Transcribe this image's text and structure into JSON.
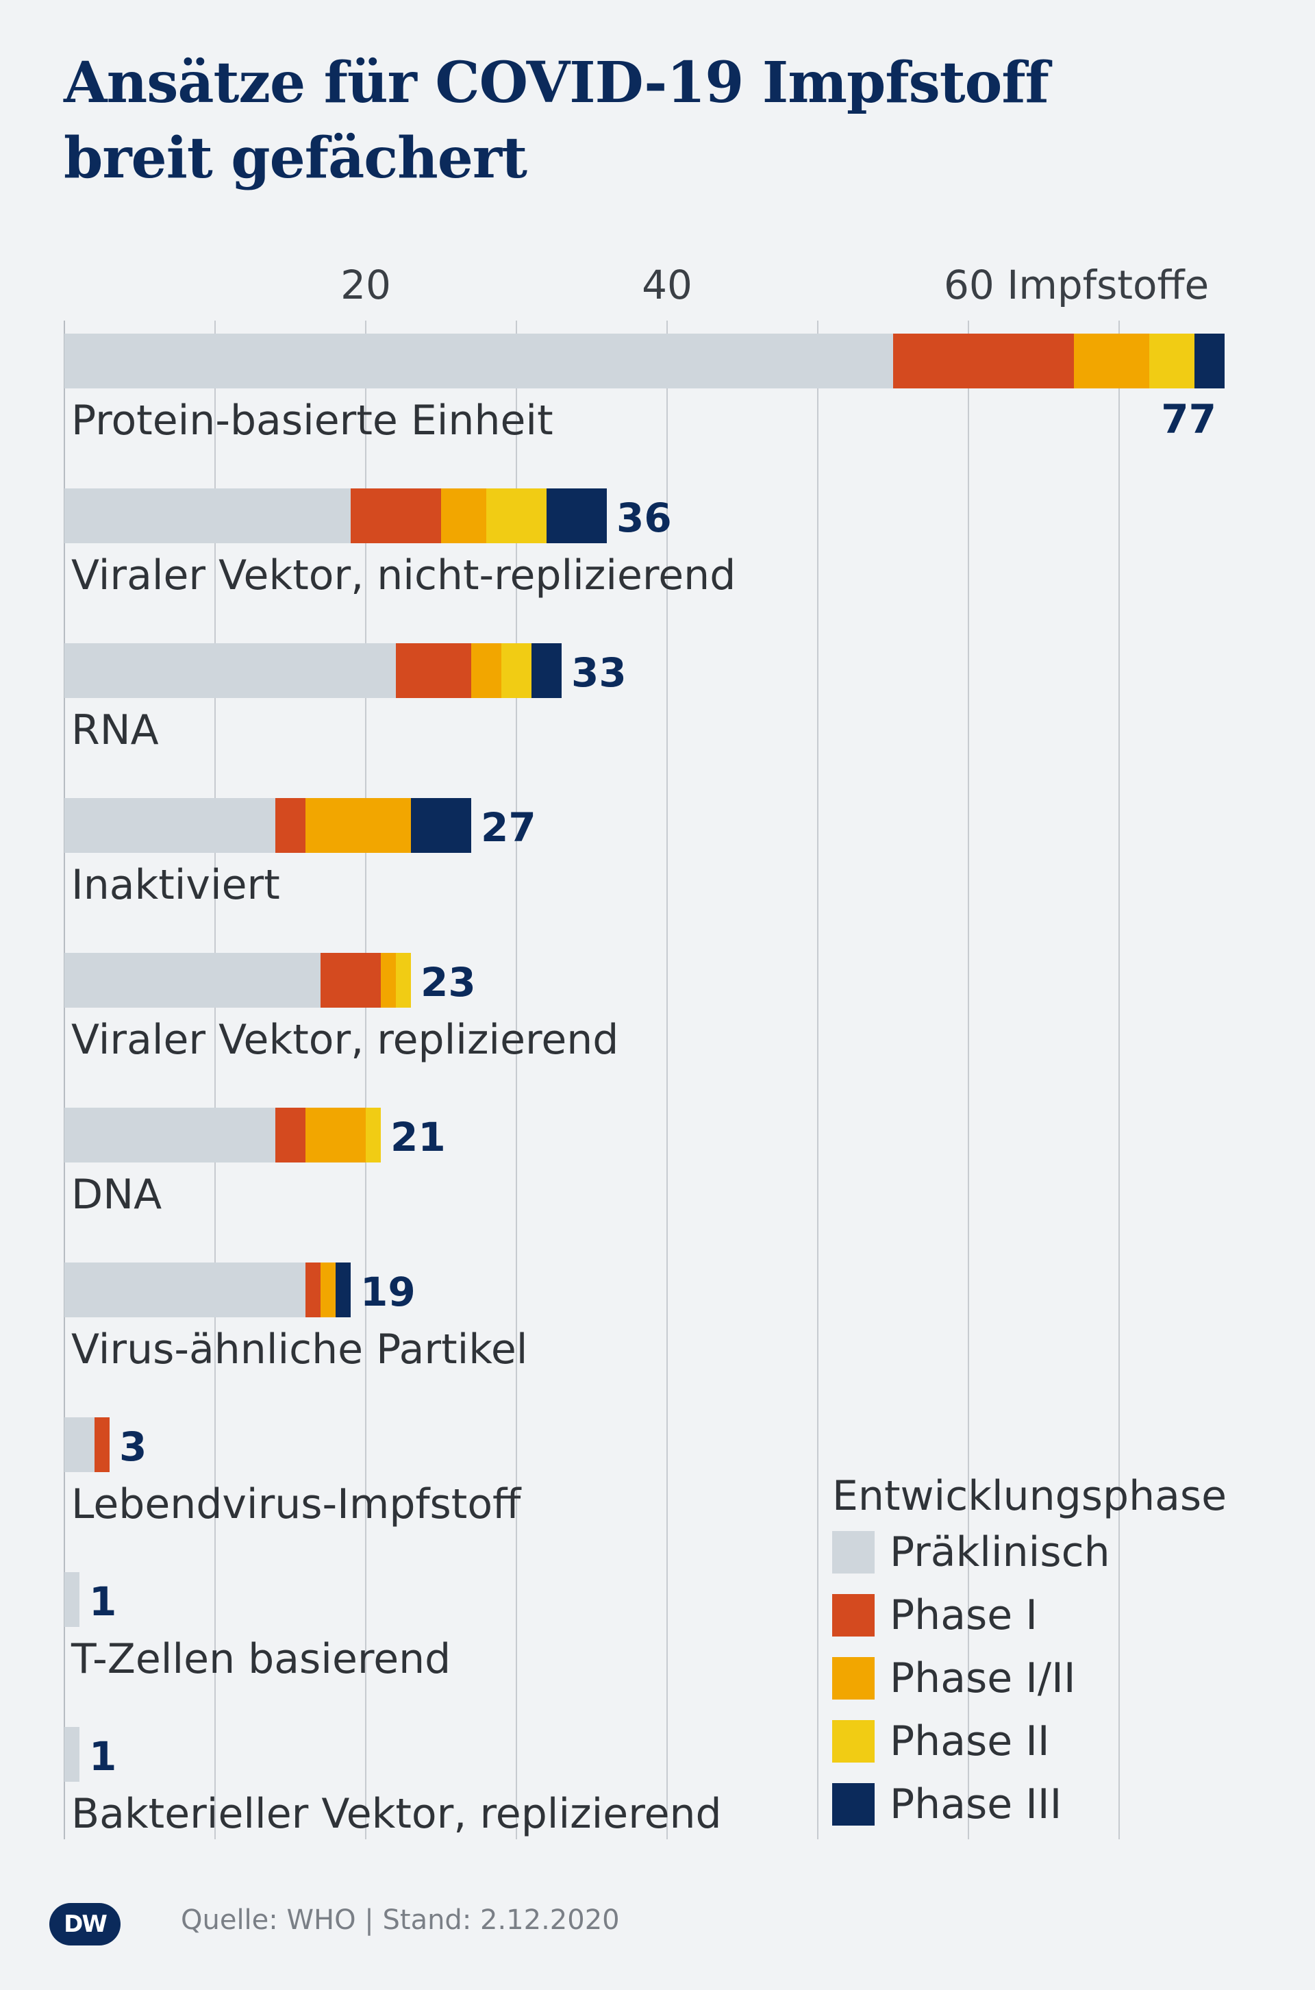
{
  "title": {
    "line1": "Ansätze für COVID-19 Impfstoff",
    "line2": "breit gefächert"
  },
  "axis": {
    "tick_labels": [
      "20",
      "40",
      "60 Impfstoffe"
    ]
  },
  "chart_data": {
    "type": "bar",
    "orientation": "horizontal",
    "stacked": true,
    "title": "Ansätze für COVID-19 Impfstoff breit gefächert",
    "xlim": [
      0,
      77
    ],
    "xticks": [
      20,
      40,
      60
    ],
    "xtick_labels": [
      "20",
      "40",
      "60 Impfstoffe"
    ],
    "grid": true,
    "legend_placement": "bottom-right",
    "categories": [
      "Protein-basierte Einheit",
      "Viraler Vektor, nicht-replizierend",
      "RNA",
      "Inaktiviert",
      "Viraler Vektor, replizierend",
      "DNA",
      "Virus-ähnliche Partikel",
      "Lebendvirus-Impfstoff",
      "T-Zellen basierend",
      "Bakterieller Vektor, replizierend"
    ],
    "totals": [
      77,
      36,
      33,
      27,
      23,
      21,
      19,
      3,
      1,
      1
    ],
    "series": [
      {
        "name": "Präklinisch",
        "color": "#cfd6dc",
        "values": [
          55,
          19,
          22,
          14,
          17,
          14,
          16,
          2,
          1,
          1
        ]
      },
      {
        "name": "Phase I",
        "color": "#d44a1f",
        "values": [
          12,
          6,
          5,
          2,
          4,
          2,
          1,
          1,
          0,
          0
        ]
      },
      {
        "name": "Phase I/II",
        "color": "#f2a600",
        "values": [
          5,
          3,
          2,
          7,
          1,
          4,
          1,
          0,
          0,
          0
        ]
      },
      {
        "name": "Phase II",
        "color": "#f1cc14",
        "values": [
          3,
          4,
          2,
          0,
          1,
          1,
          0,
          0,
          0,
          0
        ]
      },
      {
        "name": "Phase III",
        "color": "#0b2a5b",
        "values": [
          2,
          4,
          2,
          4,
          0,
          0,
          1,
          0,
          0,
          0
        ]
      }
    ]
  },
  "legend": {
    "title": "Entwicklungsphase",
    "items": [
      {
        "label": "Präklinisch",
        "color": "#cfd6dc"
      },
      {
        "label": "Phase I",
        "color": "#d44a1f"
      },
      {
        "label": "Phase I/II",
        "color": "#f2a600"
      },
      {
        "label": "Phase II",
        "color": "#f1cc14"
      },
      {
        "label": "Phase III",
        "color": "#0b2a5b"
      }
    ]
  },
  "source": "Quelle: WHO | Stand: 2.12.2020",
  "logo": "DW"
}
